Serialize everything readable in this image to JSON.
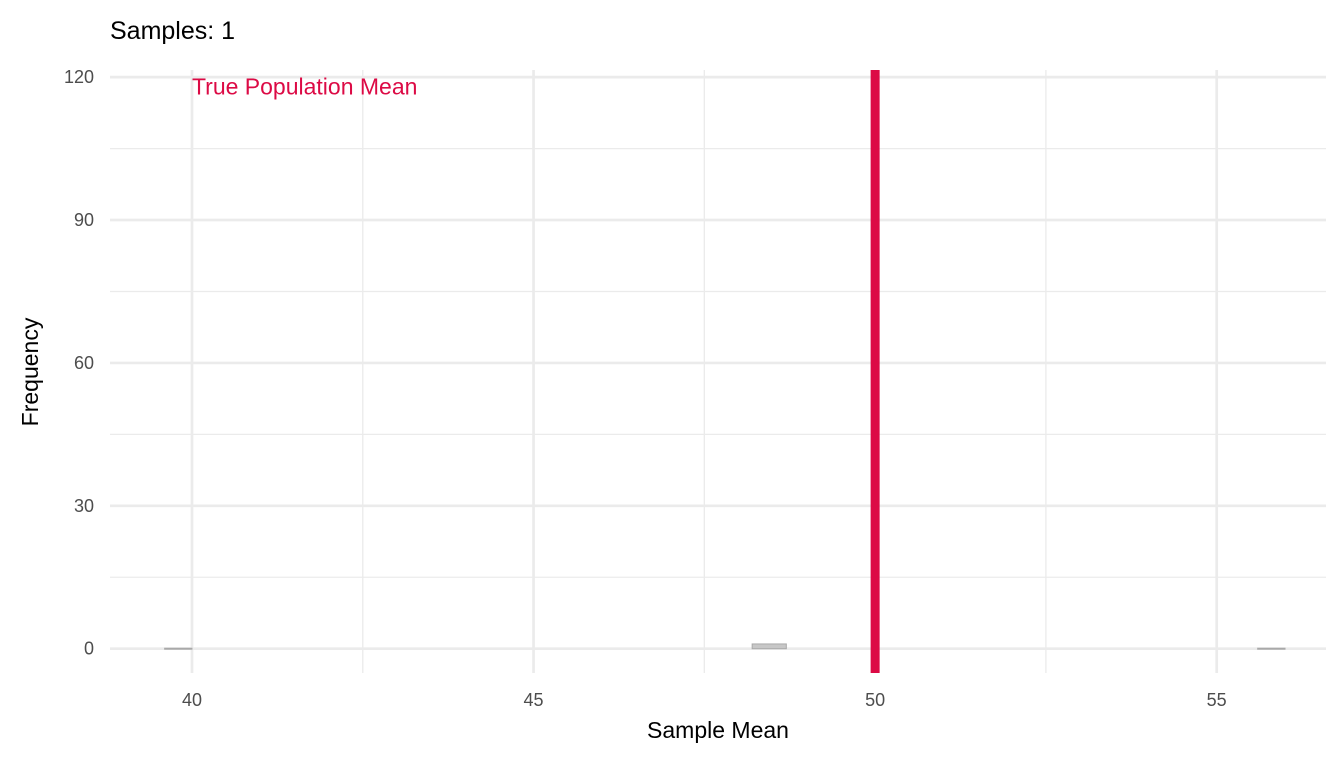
{
  "chart_data": {
    "type": "bar",
    "title": "Samples: 1",
    "xlabel": "Sample Mean",
    "ylabel": "Frequency",
    "xlim": [
      38.8,
      56.6
    ],
    "ylim": [
      -5.1,
      121.5
    ],
    "x_ticks": [
      40,
      45,
      50,
      55
    ],
    "x_tick_labels": [
      "40",
      "45",
      "50",
      "55"
    ],
    "y_ticks": [
      0,
      30,
      60,
      90,
      120
    ],
    "y_tick_labels": [
      "0",
      "30",
      "60",
      90,
      "120"
    ],
    "grid": true,
    "bins": [
      {
        "x0": 39.6,
        "x1": 40.0,
        "count": 0
      },
      {
        "x0": 48.2,
        "x1": 48.7,
        "count": 1
      },
      {
        "x0": 55.6,
        "x1": 56.0,
        "count": 0
      }
    ],
    "reference_line": {
      "x": 50,
      "label": "True Population Mean",
      "label_x": 40,
      "label_y": 118,
      "color": "#dc0a45"
    },
    "colors": {
      "grid": "#ebebeb",
      "bar_fill": "#c7c7c7",
      "bar_stroke": "#a9a9a9",
      "accent": "#dc0a45"
    }
  }
}
